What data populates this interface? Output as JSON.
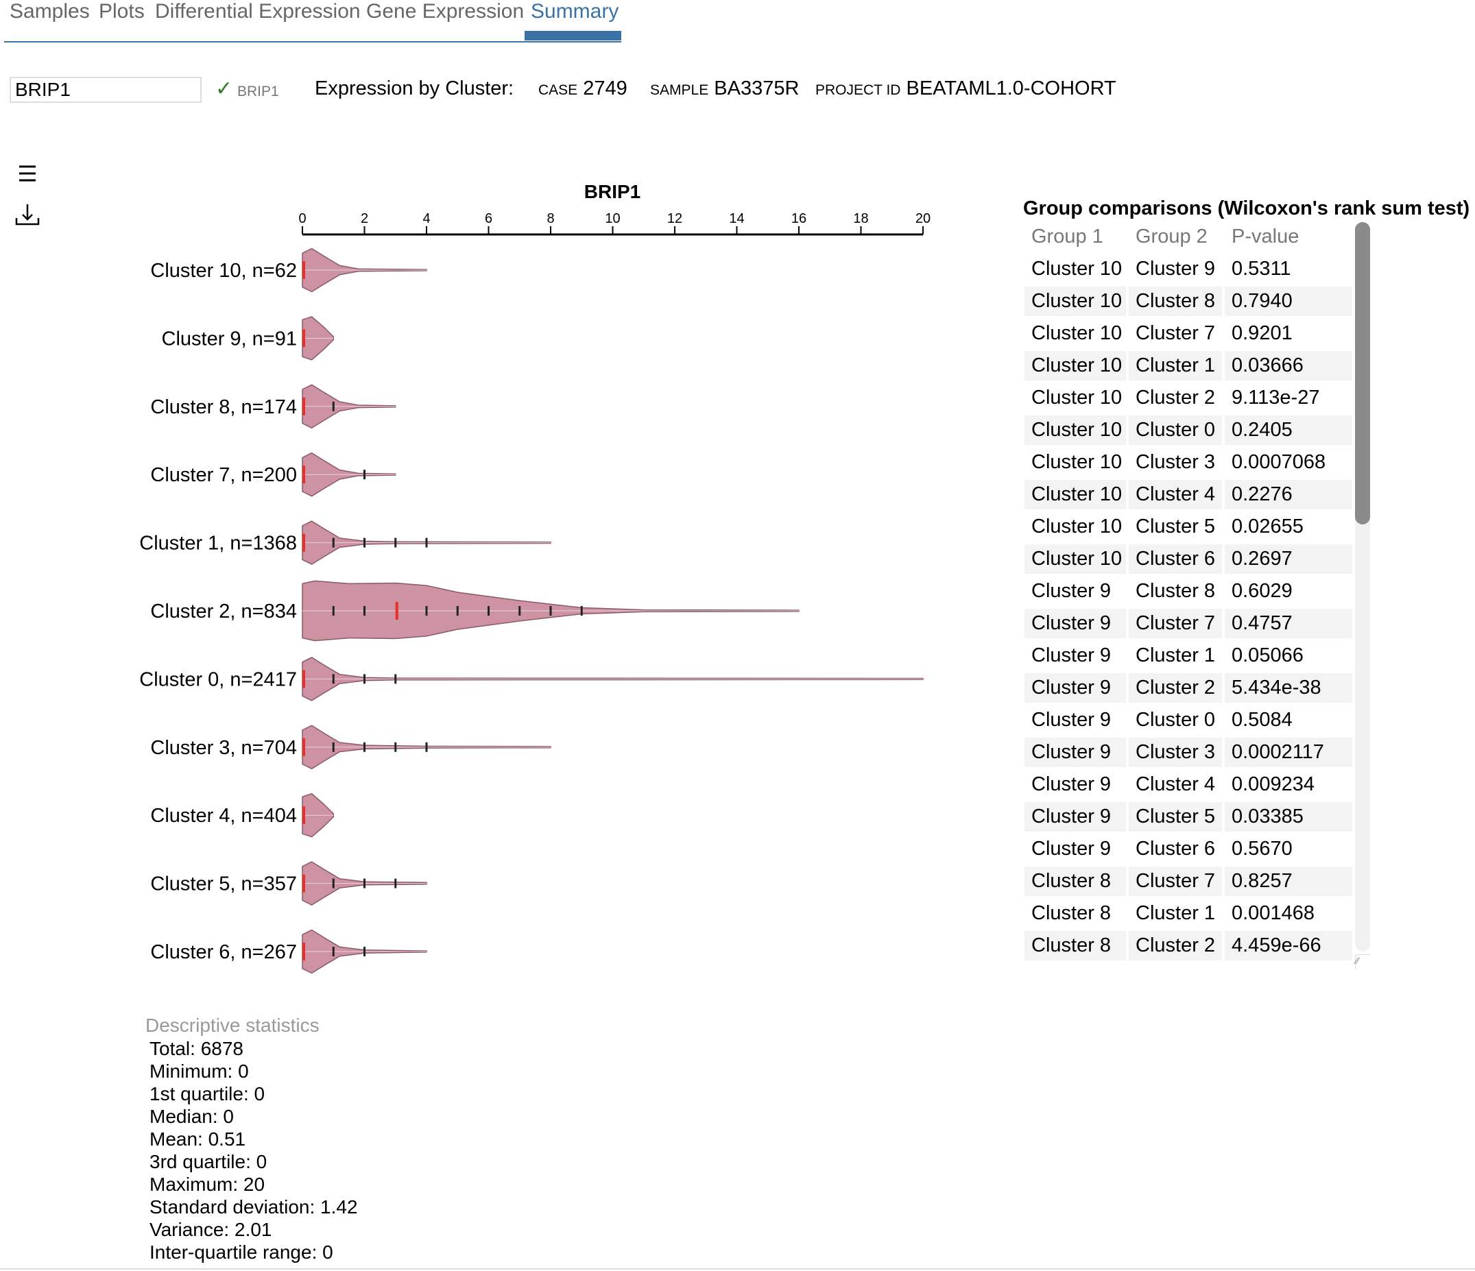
{
  "tabs": [
    {
      "label": "Samples"
    },
    {
      "label": "Plots"
    },
    {
      "label": "Differential Expression"
    },
    {
      "label": "Gene Expression"
    },
    {
      "label": "Summary"
    }
  ],
  "gene_input": {
    "value": "BRIP1"
  },
  "validated_gene": "BRIP1",
  "header": {
    "title": "Expression by Cluster:",
    "case_label": "CASE",
    "case_value": "2749",
    "sample_label": "SAMPLE",
    "sample_value": "BA3375R",
    "project_label": "PROJECT ID",
    "project_value": "BEATAML1.0-COHORT"
  },
  "colors": {
    "accent": "#3a72a8",
    "violin_fill": "#cd93a2",
    "violin_stroke": "#8a5a66",
    "median": "#e8302a"
  },
  "chart_data": {
    "type": "violin",
    "title": "BRIP1",
    "xlim": [
      0,
      20
    ],
    "xticks": [
      "0",
      "2",
      "4",
      "6",
      "8",
      "10",
      "12",
      "14",
      "16",
      "18",
      "20"
    ],
    "series": [
      {
        "label": "Cluster 10, n=62",
        "max": 4,
        "median": 0,
        "ticks": [],
        "profile": [
          [
            0,
            0.55
          ],
          [
            0.3,
            0.7
          ],
          [
            0.7,
            0.45
          ],
          [
            1.2,
            0.15
          ],
          [
            1.8,
            0.04
          ],
          [
            4,
            0.02
          ]
        ]
      },
      {
        "label": "Cluster 9, n=91",
        "max": 1,
        "median": 0,
        "ticks": [],
        "profile": [
          [
            0,
            0.6
          ],
          [
            0.3,
            0.7
          ],
          [
            0.7,
            0.35
          ],
          [
            1,
            0.05
          ]
        ]
      },
      {
        "label": "Cluster 8, n=174",
        "max": 3,
        "median": 0,
        "ticks": [
          1
        ],
        "profile": [
          [
            0,
            0.55
          ],
          [
            0.3,
            0.7
          ],
          [
            0.7,
            0.45
          ],
          [
            1.2,
            0.15
          ],
          [
            1.8,
            0.04
          ],
          [
            3,
            0.02
          ]
        ]
      },
      {
        "label": "Cluster 7, n=200",
        "max": 3,
        "median": 0,
        "ticks": [
          2
        ],
        "profile": [
          [
            0,
            0.55
          ],
          [
            0.3,
            0.7
          ],
          [
            0.7,
            0.45
          ],
          [
            1.2,
            0.15
          ],
          [
            1.8,
            0.04
          ],
          [
            3,
            0.02
          ]
        ]
      },
      {
        "label": "Cluster 1, n=1368",
        "max": 8,
        "median": 0,
        "ticks": [
          1,
          2,
          3,
          4
        ],
        "profile": [
          [
            0,
            0.55
          ],
          [
            0.3,
            0.7
          ],
          [
            0.7,
            0.45
          ],
          [
            1.2,
            0.15
          ],
          [
            2,
            0.05
          ],
          [
            3,
            0.03
          ],
          [
            8,
            0.02
          ]
        ]
      },
      {
        "label": "Cluster 2, n=834",
        "max": 16,
        "median": 3,
        "ticks": [
          1,
          2,
          4,
          5,
          6,
          7,
          8,
          9
        ],
        "profile": [
          [
            0,
            0.88
          ],
          [
            0.4,
            0.97
          ],
          [
            1.5,
            0.88
          ],
          [
            3,
            0.9
          ],
          [
            4,
            0.82
          ],
          [
            5,
            0.6
          ],
          [
            7,
            0.33
          ],
          [
            9,
            0.1
          ],
          [
            11,
            0.03
          ],
          [
            16,
            0.02
          ]
        ]
      },
      {
        "label": "Cluster 0, n=2417",
        "max": 20,
        "median": 0,
        "ticks": [
          1,
          2,
          3
        ],
        "profile": [
          [
            0,
            0.55
          ],
          [
            0.3,
            0.7
          ],
          [
            0.7,
            0.45
          ],
          [
            1.2,
            0.15
          ],
          [
            2,
            0.05
          ],
          [
            3,
            0.03
          ],
          [
            20,
            0.02
          ]
        ]
      },
      {
        "label": "Cluster 3, n=704",
        "max": 8,
        "median": 0,
        "ticks": [
          1,
          2,
          3,
          4
        ],
        "profile": [
          [
            0,
            0.55
          ],
          [
            0.3,
            0.7
          ],
          [
            0.7,
            0.45
          ],
          [
            1.2,
            0.15
          ],
          [
            2,
            0.06
          ],
          [
            4,
            0.03
          ],
          [
            8,
            0.02
          ]
        ]
      },
      {
        "label": "Cluster 4, n=404",
        "max": 1,
        "median": 0,
        "ticks": [],
        "profile": [
          [
            0,
            0.6
          ],
          [
            0.3,
            0.7
          ],
          [
            0.7,
            0.35
          ],
          [
            1,
            0.05
          ]
        ]
      },
      {
        "label": "Cluster 5, n=357",
        "max": 4,
        "median": 0,
        "ticks": [
          1,
          2,
          3
        ],
        "profile": [
          [
            0,
            0.55
          ],
          [
            0.3,
            0.7
          ],
          [
            0.7,
            0.45
          ],
          [
            1.2,
            0.15
          ],
          [
            2,
            0.05
          ],
          [
            4,
            0.03
          ]
        ]
      },
      {
        "label": "Cluster 6, n=267",
        "max": 4,
        "median": 0,
        "ticks": [
          1,
          2
        ],
        "profile": [
          [
            0,
            0.55
          ],
          [
            0.3,
            0.7
          ],
          [
            0.7,
            0.45
          ],
          [
            1.2,
            0.15
          ],
          [
            2,
            0.05
          ],
          [
            4,
            0.02
          ]
        ]
      }
    ]
  },
  "comparisons": {
    "title": "Group comparisons (Wilcoxon's rank sum test)",
    "headers": [
      "Group 1",
      "Group 2",
      "P-value"
    ],
    "rows": [
      [
        "Cluster 10",
        "Cluster 9",
        "0.5311"
      ],
      [
        "Cluster 10",
        "Cluster 8",
        "0.7940"
      ],
      [
        "Cluster 10",
        "Cluster 7",
        "0.9201"
      ],
      [
        "Cluster 10",
        "Cluster 1",
        "0.03666"
      ],
      [
        "Cluster 10",
        "Cluster 2",
        "9.113e-27"
      ],
      [
        "Cluster 10",
        "Cluster 0",
        "0.2405"
      ],
      [
        "Cluster 10",
        "Cluster 3",
        "0.0007068"
      ],
      [
        "Cluster 10",
        "Cluster 4",
        "0.2276"
      ],
      [
        "Cluster 10",
        "Cluster 5",
        "0.02655"
      ],
      [
        "Cluster 10",
        "Cluster 6",
        "0.2697"
      ],
      [
        "Cluster 9",
        "Cluster 8",
        "0.6029"
      ],
      [
        "Cluster 9",
        "Cluster 7",
        "0.4757"
      ],
      [
        "Cluster 9",
        "Cluster 1",
        "0.05066"
      ],
      [
        "Cluster 9",
        "Cluster 2",
        "5.434e-38"
      ],
      [
        "Cluster 9",
        "Cluster 0",
        "0.5084"
      ],
      [
        "Cluster 9",
        "Cluster 3",
        "0.0002117"
      ],
      [
        "Cluster 9",
        "Cluster 4",
        "0.009234"
      ],
      [
        "Cluster 9",
        "Cluster 5",
        "0.03385"
      ],
      [
        "Cluster 9",
        "Cluster 6",
        "0.5670"
      ],
      [
        "Cluster 8",
        "Cluster 7",
        "0.8257"
      ],
      [
        "Cluster 8",
        "Cluster 1",
        "0.001468"
      ],
      [
        "Cluster 8",
        "Cluster 2",
        "4.459e-66"
      ]
    ]
  },
  "stats": {
    "title": "Descriptive statistics",
    "lines": [
      "Total: 6878",
      "Minimum: 0",
      "1st quartile: 0",
      "Median: 0",
      "Mean: 0.51",
      "3rd quartile: 0",
      "Maximum: 20",
      "Standard deviation: 1.42",
      "Variance: 2.01",
      "Inter-quartile range: 0"
    ]
  }
}
